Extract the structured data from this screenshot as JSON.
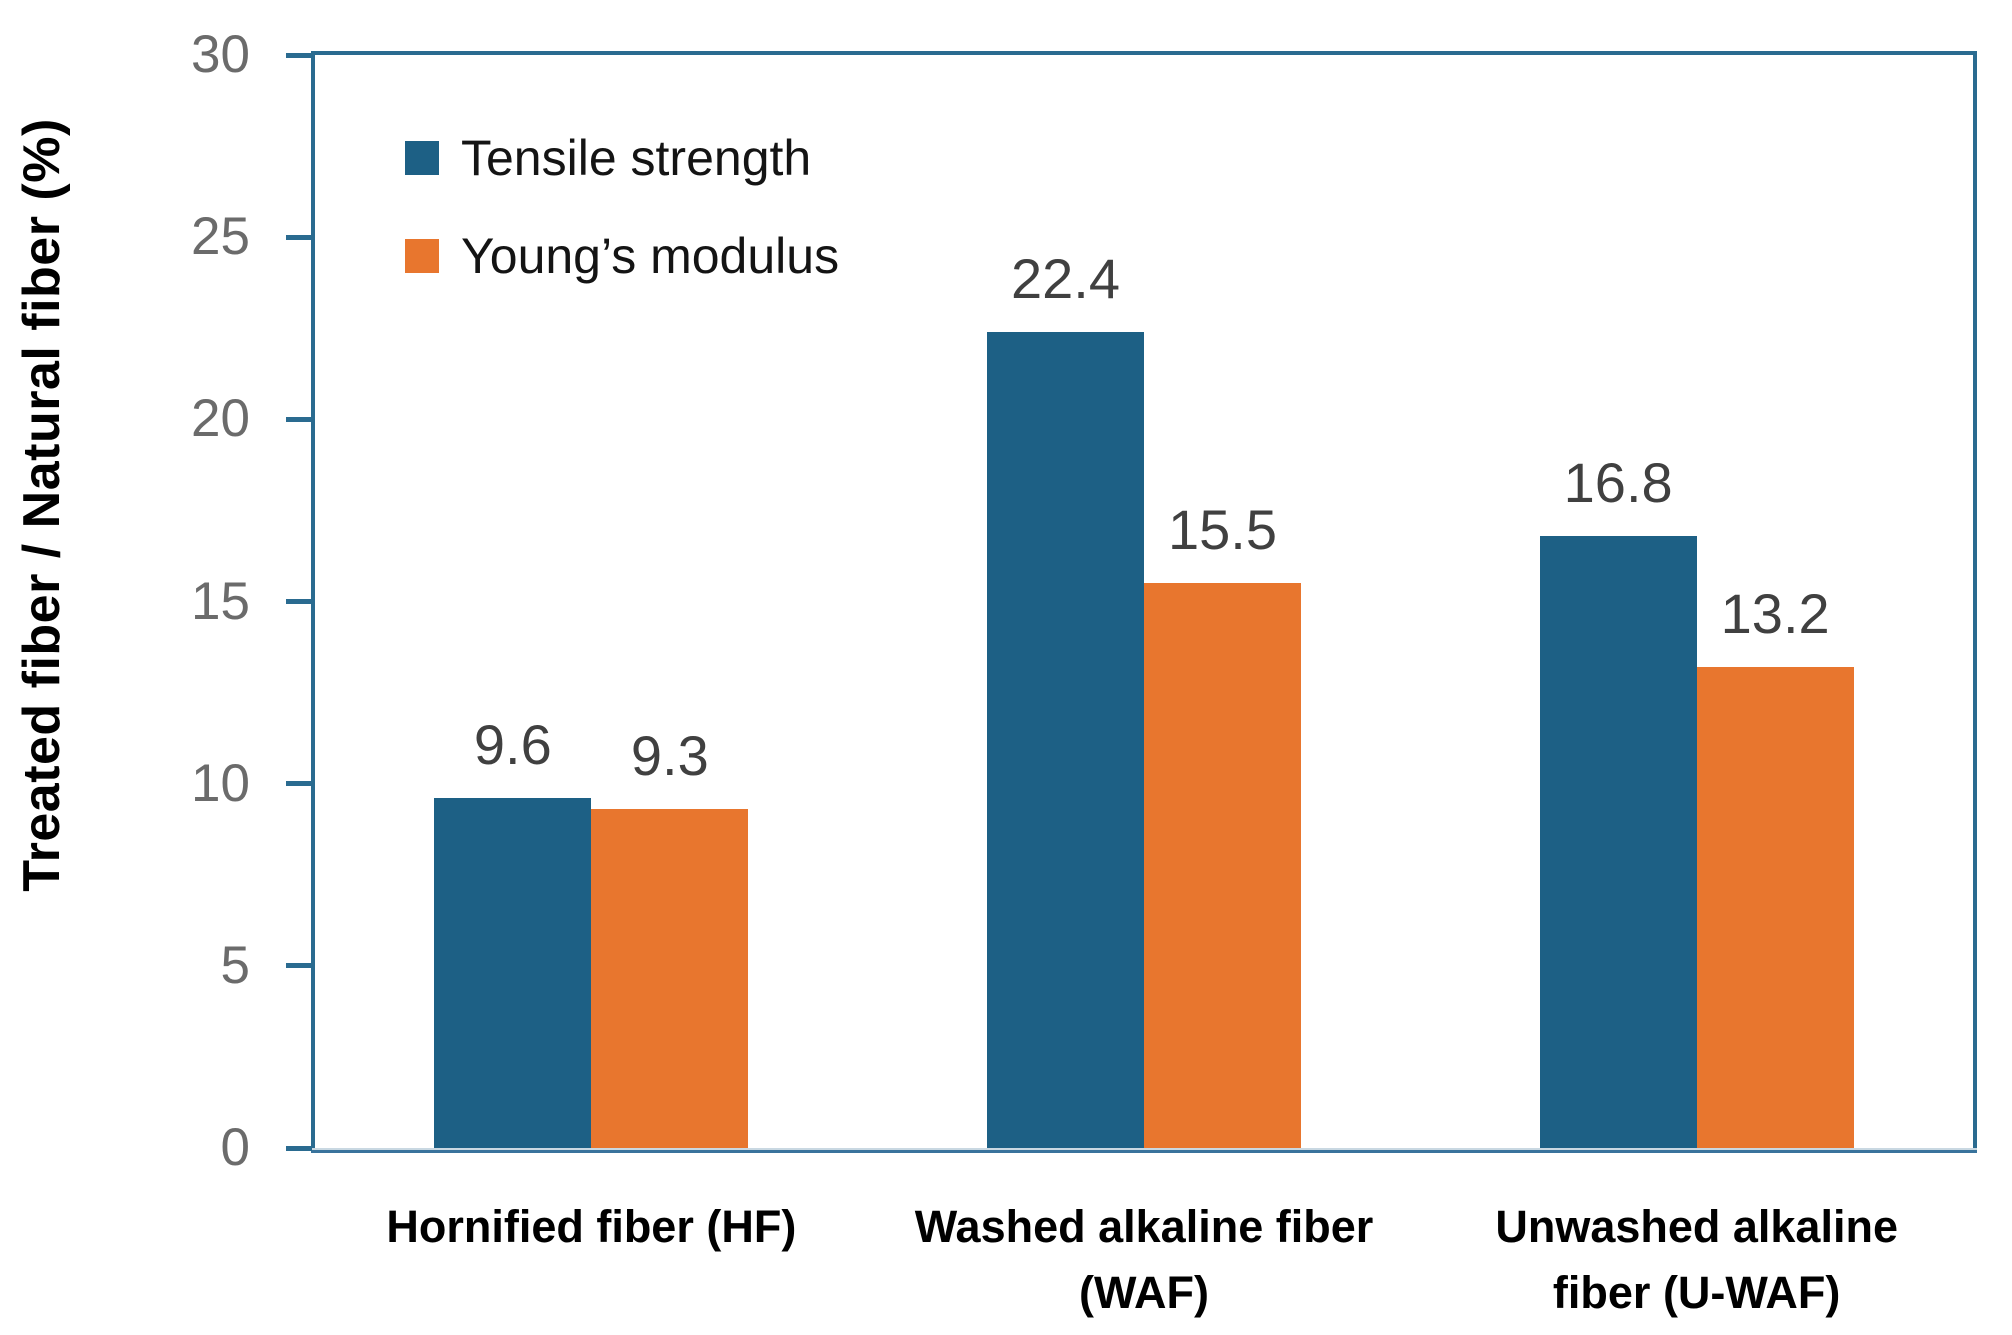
{
  "chart_data": {
    "type": "bar",
    "title": "",
    "xlabel": "",
    "ylabel": "Treated fiber / Natural fiber (%)",
    "ylim": [
      0,
      30
    ],
    "yticks": [
      0,
      5,
      10,
      15,
      20,
      25,
      30
    ],
    "grid": false,
    "value_labels": true,
    "legend_position": "top-left-inside",
    "categories": [
      "Hornified fiber (HF)",
      "Washed alkaline fiber\n(WAF)",
      "Unwashed alkaline\nfiber (U-WAF)"
    ],
    "series": [
      {
        "name": "Tensile strength",
        "color": "#1d6085",
        "values": [
          9.6,
          22.4,
          16.8
        ]
      },
      {
        "name": "Young’s modulus",
        "color": "#e8762e",
        "values": [
          9.3,
          15.5,
          13.2
        ]
      }
    ],
    "colors": {
      "axis_border": "#2a6b90",
      "baseline_light": "#c9d8e2",
      "baseline_dark": "#39739c",
      "tick_label": "#6b6b6b",
      "value_label": "#404040",
      "category_label": "#000000",
      "legend_label": "#141414",
      "background": "#ffffff"
    }
  }
}
